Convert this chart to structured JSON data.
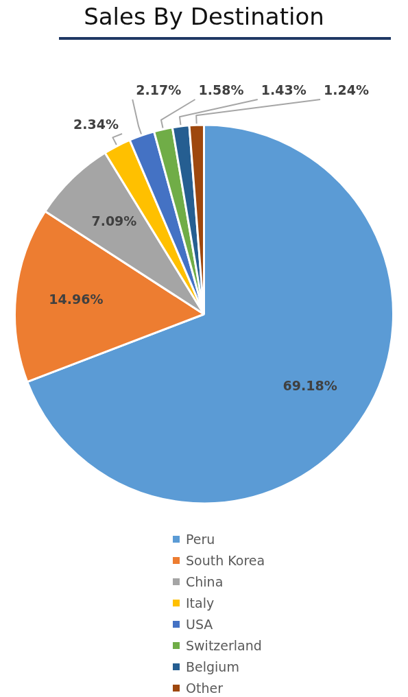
{
  "chart_data": {
    "type": "pie",
    "title": "Sales By Destination",
    "categories": [
      "Peru",
      "South Korea",
      "China",
      "Italy",
      "USA",
      "Switzerland",
      "Belgium",
      "Other"
    ],
    "values": [
      69.18,
      14.96,
      7.09,
      2.34,
      2.17,
      1.58,
      1.43,
      1.24
    ],
    "colors": [
      "#5b9bd5",
      "#ed7d31",
      "#a5a5a5",
      "#ffc000",
      "#4472c4",
      "#70ad47",
      "#255e91",
      "#9e480e"
    ],
    "value_labels": [
      "69.18%",
      "14.96%",
      "7.09%",
      "2.34%",
      "2.17%",
      "1.58%",
      "1.43%",
      "1.24%"
    ],
    "legend": "bottom"
  }
}
